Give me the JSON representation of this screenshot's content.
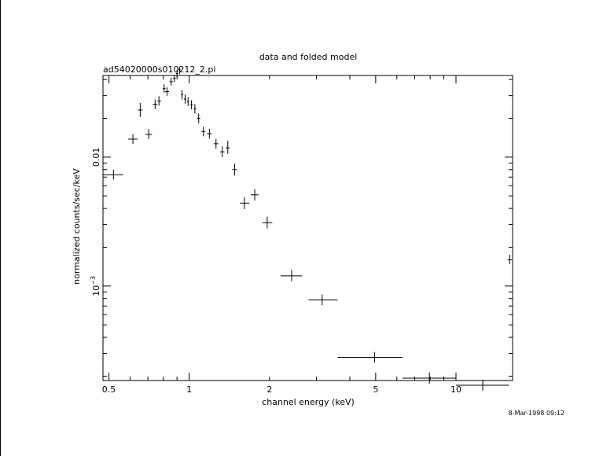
{
  "chart_data": {
    "type": "scatter",
    "title": "data and folded model",
    "subtitle": "ad54020000s010212_2.pi",
    "xlabel": "channel energy (keV)",
    "ylabel": "normalized counts/sec/keV",
    "timestamp": "8-Mar-1998 09:12",
    "x_scale": "log",
    "y_scale": "log",
    "xlim": [
      0.475,
      16.3
    ],
    "ylim": [
      0.000185,
      0.043
    ],
    "x_ticks": [
      {
        "value": 0.5,
        "label": "0.5"
      },
      {
        "value": 1,
        "label": "1"
      },
      {
        "value": 2,
        "label": "2"
      },
      {
        "value": 5,
        "label": "5"
      },
      {
        "value": 10,
        "label": "10"
      }
    ],
    "y_ticks": [
      {
        "value": 0.01,
        "label": "0.01"
      },
      {
        "value": 0.001,
        "label": "10",
        "sup": "−3"
      }
    ],
    "grid": false,
    "legend": "none",
    "points": [
      {
        "x": 0.52,
        "y": 0.0073,
        "xlo": 0.475,
        "xhi": 0.565,
        "ylo": 0.0067,
        "yhi": 0.008
      },
      {
        "x": 0.615,
        "y": 0.0138,
        "xlo": 0.59,
        "xhi": 0.64,
        "ylo": 0.0127,
        "yhi": 0.0151
      },
      {
        "x": 0.655,
        "y": 0.0232,
        "xlo": 0.642,
        "xhi": 0.668,
        "ylo": 0.0205,
        "yhi": 0.0263
      },
      {
        "x": 0.705,
        "y": 0.015,
        "xlo": 0.685,
        "xhi": 0.725,
        "ylo": 0.0138,
        "yhi": 0.0165
      },
      {
        "x": 0.745,
        "y": 0.0257,
        "xlo": 0.73,
        "xhi": 0.76,
        "ylo": 0.0236,
        "yhi": 0.028
      },
      {
        "x": 0.77,
        "y": 0.0272,
        "xlo": 0.76,
        "xhi": 0.785,
        "ylo": 0.025,
        "yhi": 0.0297
      },
      {
        "x": 0.805,
        "y": 0.034,
        "xlo": 0.795,
        "xhi": 0.815,
        "ylo": 0.0316,
        "yhi": 0.0367
      },
      {
        "x": 0.825,
        "y": 0.0322,
        "xlo": 0.812,
        "xhi": 0.84,
        "ylo": 0.0299,
        "yhi": 0.0348
      },
      {
        "x": 0.855,
        "y": 0.0385,
        "xlo": 0.843,
        "xhi": 0.868,
        "ylo": 0.036,
        "yhi": 0.0413
      },
      {
        "x": 0.88,
        "y": 0.0408,
        "xlo": 0.87,
        "xhi": 0.89,
        "ylo": 0.0382,
        "yhi": 0.0433
      },
      {
        "x": 0.9,
        "y": 0.0445,
        "xlo": 0.891,
        "xhi": 0.909,
        "ylo": 0.0417,
        "yhi": 0.0475
      },
      {
        "x": 0.92,
        "y": 0.048,
        "xlo": 0.912,
        "xhi": 0.928,
        "ylo": 0.044,
        "yhi": 0.05
      },
      {
        "x": 0.94,
        "y": 0.0305,
        "xlo": 0.932,
        "xhi": 0.948,
        "ylo": 0.028,
        "yhi": 0.0332
      },
      {
        "x": 0.965,
        "y": 0.0282,
        "xlo": 0.955,
        "xhi": 0.975,
        "ylo": 0.026,
        "yhi": 0.0306
      },
      {
        "x": 0.99,
        "y": 0.027,
        "xlo": 0.98,
        "xhi": 1.0,
        "ylo": 0.0249,
        "yhi": 0.0292
      },
      {
        "x": 1.02,
        "y": 0.0255,
        "xlo": 1.008,
        "xhi": 1.032,
        "ylo": 0.0235,
        "yhi": 0.0277
      },
      {
        "x": 1.05,
        "y": 0.0237,
        "xlo": 1.038,
        "xhi": 1.062,
        "ylo": 0.0218,
        "yhi": 0.0258
      },
      {
        "x": 1.085,
        "y": 0.02,
        "xlo": 1.07,
        "xhi": 1.1,
        "ylo": 0.0183,
        "yhi": 0.0218
      },
      {
        "x": 1.13,
        "y": 0.0158,
        "xlo": 1.11,
        "xhi": 1.15,
        "ylo": 0.0145,
        "yhi": 0.0172
      },
      {
        "x": 1.19,
        "y": 0.0152,
        "xlo": 1.165,
        "xhi": 1.215,
        "ylo": 0.0139,
        "yhi": 0.0166
      },
      {
        "x": 1.26,
        "y": 0.0127,
        "xlo": 1.235,
        "xhi": 1.285,
        "ylo": 0.0116,
        "yhi": 0.0139
      },
      {
        "x": 1.33,
        "y": 0.011,
        "xlo": 1.305,
        "xhi": 1.355,
        "ylo": 0.01,
        "yhi": 0.0121
      },
      {
        "x": 1.395,
        "y": 0.0118,
        "xlo": 1.37,
        "xhi": 1.42,
        "ylo": 0.0106,
        "yhi": 0.0134
      },
      {
        "x": 1.48,
        "y": 0.008,
        "xlo": 1.45,
        "xhi": 1.51,
        "ylo": 0.0072,
        "yhi": 0.0089
      },
      {
        "x": 1.61,
        "y": 0.0044,
        "xlo": 1.55,
        "xhi": 1.68,
        "ylo": 0.00395,
        "yhi": 0.0049
      },
      {
        "x": 1.76,
        "y": 0.0051,
        "xlo": 1.7,
        "xhi": 1.82,
        "ylo": 0.0046,
        "yhi": 0.00565
      },
      {
        "x": 1.96,
        "y": 0.0031,
        "xlo": 1.88,
        "xhi": 2.05,
        "ylo": 0.0028,
        "yhi": 0.00345
      },
      {
        "x": 2.42,
        "y": 0.0012,
        "xlo": 2.2,
        "xhi": 2.65,
        "ylo": 0.00109,
        "yhi": 0.00133
      },
      {
        "x": 3.15,
        "y": 0.00078,
        "xlo": 2.8,
        "xhi": 3.6,
        "ylo": 0.00071,
        "yhi": 0.00086
      },
      {
        "x": 4.95,
        "y": 0.00028,
        "xlo": 3.6,
        "xhi": 6.3,
        "ylo": 0.000255,
        "yhi": 0.000308
      },
      {
        "x": 7.95,
        "y": 0.000193,
        "xlo": 6.3,
        "xhi": 10.0,
        "ylo": 0.000175,
        "yhi": 0.000214
      },
      {
        "x": 12.6,
        "y": 0.00017,
        "xlo": 10.0,
        "xhi": 15.8,
        "ylo": 0.000154,
        "yhi": 0.000188
      },
      {
        "x": 15.9,
        "y": 0.0016,
        "xlo": 15.6,
        "xhi": 16.2,
        "ylo": 0.00148,
        "yhi": 0.00175
      }
    ]
  }
}
